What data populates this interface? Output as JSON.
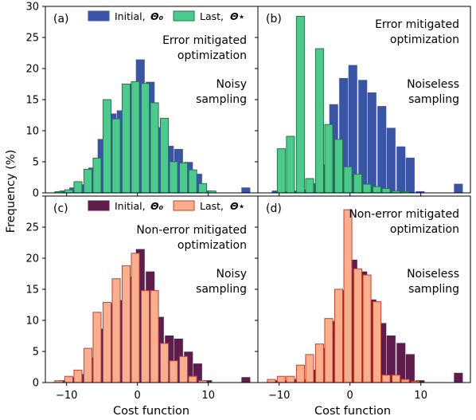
{
  "figure": {
    "ylabel": "Frequency (%)",
    "xlabel": "Cost function"
  },
  "colors": {
    "initial_a": "#3a55a4",
    "last_a": "#4dc98e",
    "last_a_edge": "#1d7a43",
    "initial_c": "#5e1d4c",
    "last_c": "#f8ae8f",
    "last_c_edge": "#c3432a"
  },
  "chart_data": [
    {
      "type": "bar",
      "panel": "(a)",
      "annotation": [
        "Error mitigated",
        "optimization"
      ],
      "sampling": [
        "Noisy",
        "sampling"
      ],
      "legend": [
        "Initial, ",
        "Last, "
      ],
      "legend_math": [
        "Θ₀",
        "Θ⋆"
      ],
      "ylim": [
        0,
        30
      ],
      "yticks": [
        0,
        5,
        10,
        15,
        20,
        25,
        30
      ],
      "xlim": [
        -13,
        17
      ],
      "bin_width": 1.13,
      "series": [
        {
          "name": "Initial, Θ₀",
          "x": [
            -10.4,
            -9.0,
            -7.7,
            -6.3,
            -5.0,
            -3.6,
            -2.3,
            -0.9,
            0.4,
            1.8,
            3.1,
            4.5,
            5.8,
            7.2,
            8.5,
            9.9,
            11.2,
            12.6,
            13.9,
            15.3
          ],
          "values": [
            0.3,
            0.8,
            1.3,
            4.0,
            8.6,
            12.7,
            13.2,
            17.5,
            21.4,
            17.8,
            10.5,
            7.5,
            7.0,
            4.9,
            3.0,
            0.3,
            0.0,
            0.0,
            0.0,
            0.8
          ]
        },
        {
          "name": "Last, Θ⋆",
          "x": [
            -11.1,
            -9.7,
            -8.4,
            -7.0,
            -5.7,
            -4.3,
            -3.0,
            -1.6,
            -0.3,
            1.1,
            2.4,
            3.8,
            5.1,
            6.5,
            7.8,
            9.2,
            10.5,
            11.9
          ],
          "values": [
            0.2,
            0.5,
            1.8,
            3.8,
            5.6,
            15.0,
            11.9,
            17.5,
            17.9,
            17.6,
            14.5,
            12.0,
            5.0,
            4.8,
            3.7,
            1.5,
            0.3,
            0.0
          ]
        }
      ]
    },
    {
      "type": "bar",
      "panel": "(b)",
      "annotation": [
        "Error mitigated",
        "optimization"
      ],
      "sampling": [
        "Noiseless",
        "sampling"
      ],
      "ylim": [
        0,
        30
      ],
      "xlim": [
        -13,
        17
      ],
      "bin_width": 1.13,
      "series": [
        {
          "name": "Initial, Θ₀",
          "x": [
            -10.4,
            -9.0,
            -7.7,
            -6.3,
            -5.0,
            -3.6,
            -2.3,
            -0.9,
            0.4,
            1.8,
            3.1,
            4.5,
            5.8,
            7.2,
            8.5,
            9.9,
            11.2,
            12.6,
            13.9,
            15.3
          ],
          "values": [
            0.3,
            0.2,
            0.3,
            0.5,
            1.5,
            4.5,
            14.2,
            18.4,
            20.5,
            18.1,
            16.1,
            13.9,
            10.4,
            7.4,
            5.6,
            0.2,
            0.0,
            0.0,
            0.0,
            1.4
          ]
        },
        {
          "name": "Last, Θ⋆",
          "x": [
            -11.1,
            -9.7,
            -8.4,
            -7.0,
            -5.7,
            -4.3,
            -3.0,
            -1.6,
            -0.3,
            1.1,
            2.4,
            3.8,
            5.1,
            6.5,
            7.8,
            9.2,
            10.5,
            11.9
          ],
          "values": [
            0.0,
            7.1,
            9.1,
            28.4,
            2.3,
            23.2,
            11.0,
            8.6,
            4.2,
            3.0,
            1.4,
            1.0,
            0.7,
            0.3,
            0.2,
            0.0,
            0.0,
            0.0
          ]
        }
      ]
    },
    {
      "type": "bar",
      "panel": "(c)",
      "annotation": [
        "Non-error mitigated",
        "optimization"
      ],
      "sampling": [
        "Noisy",
        "sampling"
      ],
      "legend": [
        "Initial, ",
        "Last, "
      ],
      "legend_math": [
        "Θ₀",
        "Θ⋆"
      ],
      "ylim": [
        0,
        30
      ],
      "yticks": [
        0,
        5,
        10,
        15,
        20,
        25
      ],
      "xlim": [
        -13,
        17
      ],
      "xticks": [
        -10,
        0,
        10
      ],
      "bin_width": 1.13,
      "series": [
        {
          "name": "Initial, Θ₀",
          "x": [
            -10.4,
            -9.0,
            -7.7,
            -6.3,
            -5.0,
            -3.6,
            -2.3,
            -0.9,
            0.4,
            1.8,
            3.1,
            4.5,
            5.8,
            7.2,
            8.5,
            9.9,
            11.2,
            12.6,
            13.9,
            15.3
          ],
          "values": [
            0.3,
            0.8,
            1.3,
            4.0,
            8.6,
            12.7,
            13.2,
            17.0,
            21.4,
            17.8,
            10.5,
            7.5,
            7.0,
            4.9,
            3.0,
            0.3,
            0.0,
            0.0,
            0.0,
            0.8
          ]
        },
        {
          "name": "Last, Θ⋆",
          "x": [
            -11.1,
            -9.7,
            -8.4,
            -7.0,
            -5.7,
            -4.3,
            -3.0,
            -1.6,
            -0.3,
            1.1,
            2.4,
            3.8,
            5.1,
            6.5,
            7.8,
            9.2,
            10.5,
            11.9
          ],
          "values": [
            0.3,
            1.0,
            2.0,
            5.5,
            11.3,
            12.9,
            16.7,
            18.8,
            20.8,
            14.8,
            14.8,
            6.3,
            3.5,
            4.2,
            1.0,
            0.3,
            0.0,
            0.0
          ]
        }
      ]
    },
    {
      "type": "bar",
      "panel": "(d)",
      "annotation": [
        "Non-error mitigated",
        "optimization"
      ],
      "sampling": [
        "Noiseless",
        "sampling"
      ],
      "ylim": [
        0,
        30
      ],
      "xlim": [
        -13,
        17
      ],
      "xticks": [
        -10,
        0,
        10
      ],
      "bin_width": 1.13,
      "series": [
        {
          "name": "Initial, Θ₀",
          "x": [
            -10.4,
            -9.0,
            -7.7,
            -6.3,
            -5.0,
            -3.6,
            -2.3,
            -0.9,
            0.4,
            1.8,
            3.1,
            4.5,
            5.8,
            7.2,
            8.5,
            9.9,
            11.2,
            12.6,
            13.9,
            15.3
          ],
          "values": [
            0.3,
            0.3,
            0.5,
            0.5,
            2.0,
            5.5,
            9.8,
            14.8,
            19.7,
            17.8,
            13.3,
            9.5,
            7.5,
            6.3,
            4.5,
            0.3,
            0.0,
            0.0,
            0.0,
            1.5
          ]
        },
        {
          "name": "Last, Θ⋆",
          "x": [
            -11.1,
            -9.7,
            -8.4,
            -7.0,
            -5.7,
            -4.3,
            -3.0,
            -1.6,
            -0.3,
            1.1,
            2.4,
            3.8,
            5.1,
            6.5,
            7.8,
            9.2,
            10.5,
            11.9
          ],
          "values": [
            0.5,
            1.0,
            1.0,
            2.8,
            4.5,
            6.2,
            10.3,
            15.0,
            27.8,
            18.3,
            17.3,
            13.0,
            1.2,
            1.2,
            0.5,
            0.2,
            0.0,
            0.0
          ]
        }
      ]
    }
  ]
}
